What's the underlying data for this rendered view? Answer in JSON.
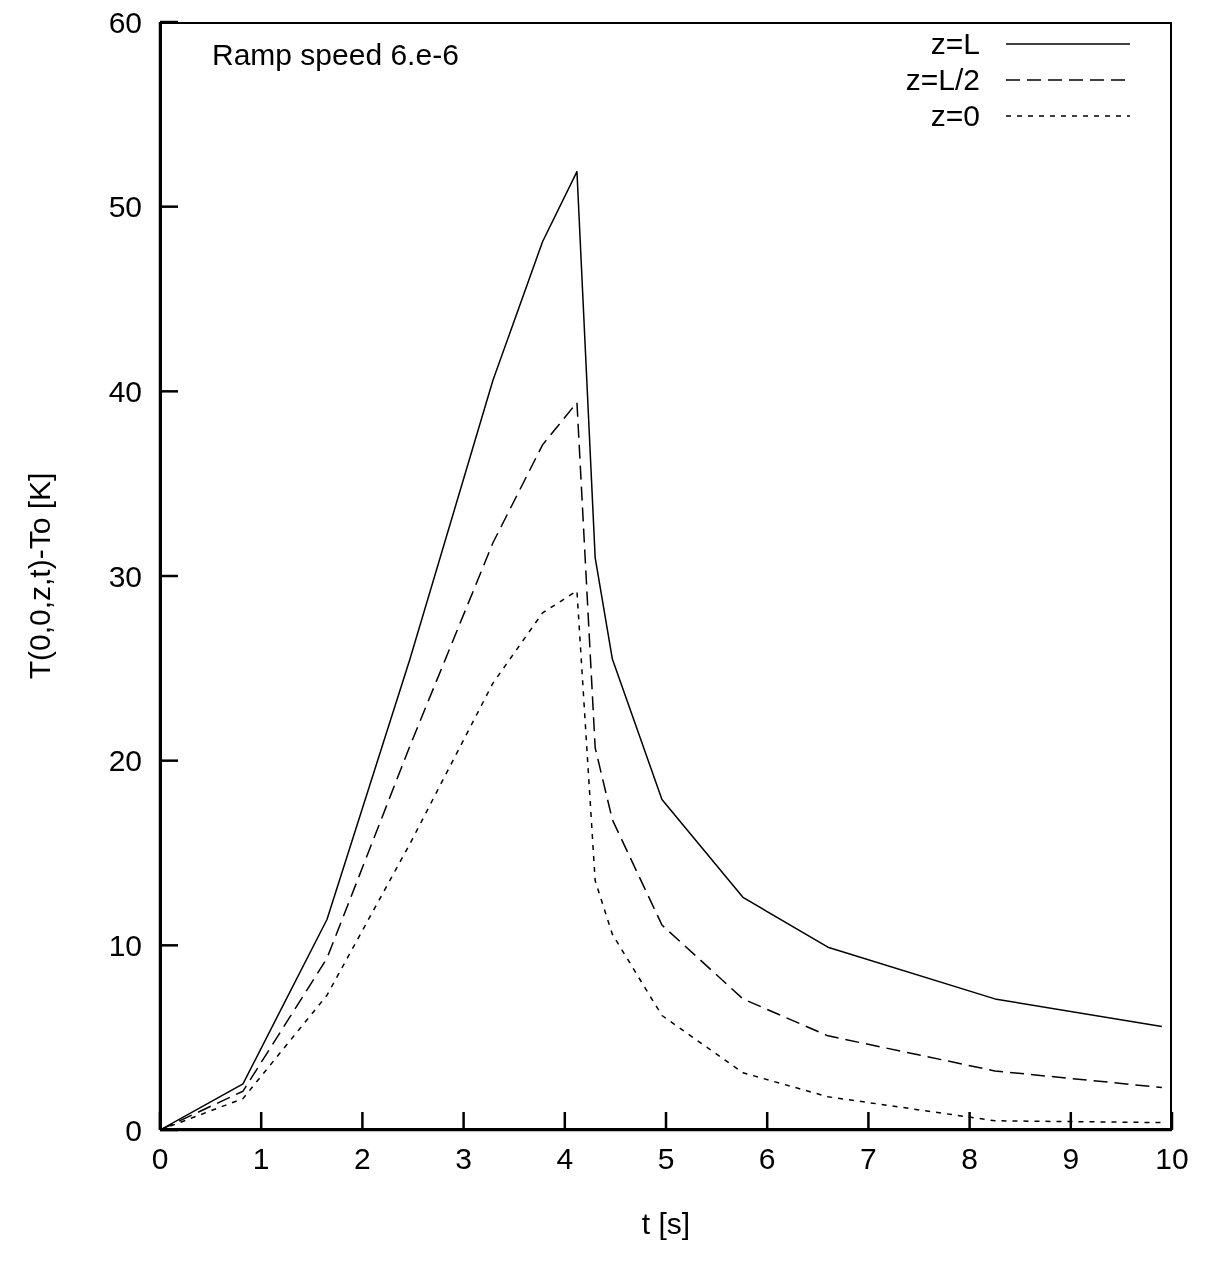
{
  "chart_data": {
    "type": "line",
    "xlabel": "t [s]",
    "ylabel": "T(0,0,z,t)-To  [K]",
    "annotations": [
      "Ramp speed 6.e-6"
    ],
    "x": [
      0,
      0.82,
      1.65,
      2.47,
      3.29,
      3.78,
      4.12,
      4.3,
      4.47,
      4.96,
      5.76,
      6.6,
      8.25,
      9.9
    ],
    "series": [
      {
        "name": "z=L",
        "color": "#000000",
        "line_style": "solid",
        "values": [
          0,
          2.5,
          11.4,
          25.5,
          40.6,
          48.1,
          51.9,
          31,
          25.5,
          17.9,
          12.6,
          9.9,
          7.1,
          5.6
        ]
      },
      {
        "name": "z=L/2",
        "color": "#000000",
        "line_style": "dashed",
        "values": [
          0,
          2.1,
          9.3,
          20.8,
          31.8,
          37.1,
          39.4,
          20.7,
          16.8,
          11.1,
          7.1,
          5.1,
          3.2,
          2.3
        ]
      },
      {
        "name": "z=0",
        "color": "#000000",
        "line_style": "dotted",
        "values": [
          0,
          1.7,
          7.3,
          15.5,
          24.2,
          28,
          29.2,
          13.5,
          10.6,
          6.2,
          3.1,
          1.8,
          0.5,
          0.4
        ]
      }
    ],
    "xlim": [
      0,
      10
    ],
    "xticks": [
      0,
      1,
      2,
      3,
      4,
      5,
      6,
      7,
      8,
      9,
      10
    ],
    "ylim": [
      0,
      60
    ],
    "yticks": [
      0,
      10,
      20,
      30,
      40,
      50,
      60
    ],
    "grid": false,
    "legend": "top right",
    "marker": "none"
  }
}
